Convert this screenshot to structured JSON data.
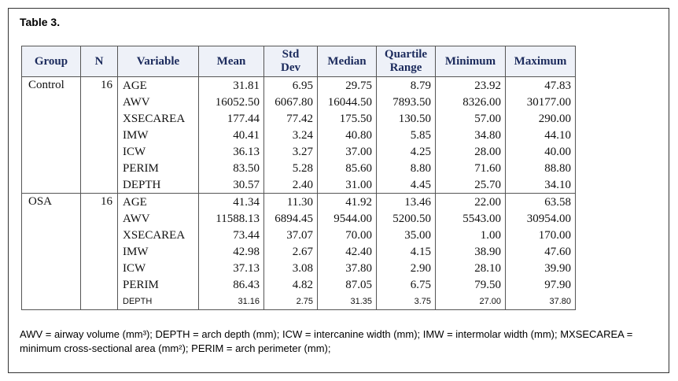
{
  "table_title": "Table 3.",
  "headers": {
    "group": "Group",
    "n": "N",
    "variable": "Variable",
    "mean": "Mean",
    "std_line1": "Std",
    "std_line2": "Dev",
    "median": "Median",
    "quartile_line1": "Quartile",
    "quartile_line2": "Range",
    "minimum": "Minimum",
    "maximum": "Maximum"
  },
  "groups": [
    {
      "name": "Control",
      "n": "16",
      "rows": [
        {
          "variable": "AGE",
          "mean": "31.81",
          "std": "6.95",
          "median": "29.75",
          "qr": "8.79",
          "min": "23.92",
          "max": "47.83"
        },
        {
          "variable": "AWV",
          "mean": "16052.50",
          "std": "6067.80",
          "median": "16044.50",
          "qr": "7893.50",
          "min": "8326.00",
          "max": "30177.00"
        },
        {
          "variable": "XSECAREA",
          "mean": "177.44",
          "std": "77.42",
          "median": "175.50",
          "qr": "130.50",
          "min": "57.00",
          "max": "290.00"
        },
        {
          "variable": "IMW",
          "mean": "40.41",
          "std": "3.24",
          "median": "40.80",
          "qr": "5.85",
          "min": "34.80",
          "max": "44.10"
        },
        {
          "variable": "ICW",
          "mean": "36.13",
          "std": "3.27",
          "median": "37.00",
          "qr": "4.25",
          "min": "28.00",
          "max": "40.00"
        },
        {
          "variable": "PERIM",
          "mean": "83.50",
          "std": "5.28",
          "median": "85.60",
          "qr": "8.80",
          "min": "71.60",
          "max": "88.80"
        },
        {
          "variable": "DEPTH",
          "mean": "30.57",
          "std": "2.40",
          "median": "31.00",
          "qr": "4.45",
          "min": "25.70",
          "max": "34.10"
        }
      ]
    },
    {
      "name": "OSA",
      "n": "16",
      "rows": [
        {
          "variable": "AGE",
          "mean": "41.34",
          "std": "11.30",
          "median": "41.92",
          "qr": "13.46",
          "min": "22.00",
          "max": "63.58"
        },
        {
          "variable": "AWV",
          "mean": "11588.13",
          "std": "6894.45",
          "median": "9544.00",
          "qr": "5200.50",
          "min": "5543.00",
          "max": "30954.00"
        },
        {
          "variable": "XSECAREA",
          "mean": "73.44",
          "std": "37.07",
          "median": "70.00",
          "qr": "35.00",
          "min": "1.00",
          "max": "170.00"
        },
        {
          "variable": "IMW",
          "mean": "42.98",
          "std": "2.67",
          "median": "42.40",
          "qr": "4.15",
          "min": "38.90",
          "max": "47.60"
        },
        {
          "variable": "ICW",
          "mean": "37.13",
          "std": "3.08",
          "median": "37.80",
          "qr": "2.90",
          "min": "28.10",
          "max": "39.90"
        },
        {
          "variable": "PERIM",
          "mean": "86.43",
          "std": "4.82",
          "median": "87.05",
          "qr": "6.75",
          "min": "79.50",
          "max": "97.90"
        },
        {
          "variable": "DEPTH",
          "mean": "31.16",
          "std": "2.75",
          "median": "31.35",
          "qr": "3.75",
          "min": "27.00",
          "max": "37.80",
          "small": true
        }
      ]
    }
  ],
  "footnote": "AWV = airway volume (mm³); DEPTH = arch depth (mm); ICW = intercanine width (mm); IMW = intermolar width (mm); MXSECAREA = minimum cross-sectional area (mm²); PERIM = arch perimeter (mm);"
}
